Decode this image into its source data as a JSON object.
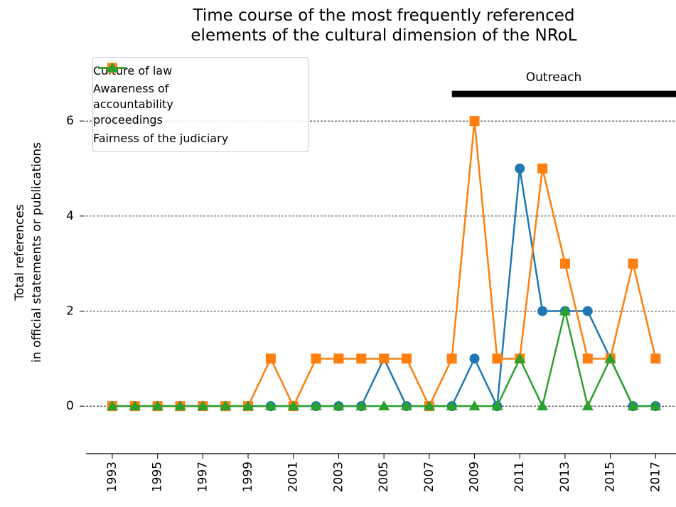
{
  "chart_data": {
    "type": "line",
    "title": "Time course of the most frequently referenced\nelements of the cultural dimension of the NRoL",
    "ylabel": "Total references\nin official statements or publications",
    "x": [
      1993,
      1994,
      1995,
      1996,
      1997,
      1998,
      1999,
      2000,
      2001,
      2002,
      2003,
      2004,
      2005,
      2006,
      2007,
      2008,
      2009,
      2010,
      2011,
      2012,
      2013,
      2014,
      2015,
      2016,
      2017
    ],
    "series": [
      {
        "name": "Culture of law",
        "color": "#1f77b4",
        "marker": "circle",
        "values": [
          0,
          0,
          0,
          0,
          0,
          0,
          0,
          0,
          0,
          0,
          0,
          0,
          1,
          0,
          0,
          0,
          1,
          0,
          5,
          2,
          2,
          2,
          1,
          0,
          0
        ]
      },
      {
        "name": "Awareness of\naccountability\nproceedings",
        "color": "#ff7f0e",
        "marker": "square",
        "values": [
          0,
          0,
          0,
          0,
          0,
          0,
          0,
          1,
          0,
          1,
          1,
          1,
          1,
          1,
          0,
          1,
          6,
          1,
          1,
          5,
          3,
          1,
          1,
          3,
          1
        ]
      },
      {
        "name": "Fairness of the judiciary",
        "color": "#2ca02c",
        "marker": "triangle",
        "values": [
          0,
          0,
          0,
          0,
          0,
          0,
          0,
          0,
          0,
          0,
          0,
          0,
          0,
          0,
          0,
          0,
          0,
          0,
          1,
          0,
          2,
          0,
          1,
          0,
          0
        ]
      }
    ],
    "xlim": [
      1991.84,
      2017.9
    ],
    "xticks": [
      1993,
      1995,
      1997,
      1999,
      2001,
      2003,
      2005,
      2007,
      2009,
      2011,
      2013,
      2015,
      2017
    ],
    "ylim": [
      -1,
      7.4
    ],
    "yticks": [
      0,
      2,
      4,
      6
    ],
    "grid": true,
    "legend": "upper left",
    "annotation": {
      "label": "Outreach",
      "start": 2008,
      "end": 2018,
      "y": 6.57
    }
  }
}
